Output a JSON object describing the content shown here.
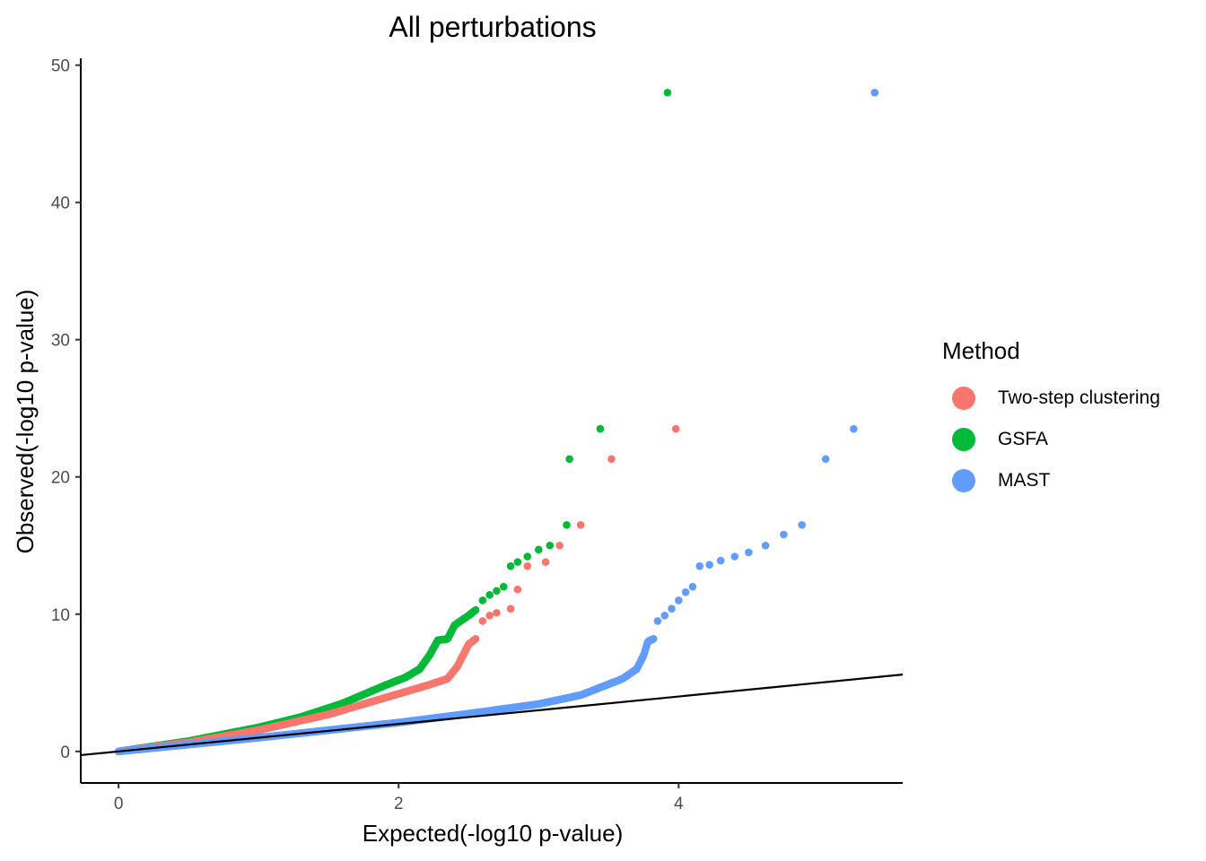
{
  "chart_data": {
    "type": "scatter",
    "title": "All perturbations",
    "xlabel": "Expected(-log10 p-value)",
    "ylabel": "Observed(-log10 p-value)",
    "xlim": [
      -0.27,
      5.6
    ],
    "ylim": [
      -2.3,
      50.5
    ],
    "xticks": [
      0,
      2,
      4
    ],
    "yticks": [
      0,
      10,
      20,
      30,
      40,
      50
    ],
    "reference_line": {
      "slope": 1,
      "intercept": 0,
      "color": "#000000"
    },
    "legend": {
      "title": "Method",
      "position": "right"
    },
    "series": [
      {
        "name": "Two-step clustering",
        "color": "#F8766D",
        "curve": [
          [
            0,
            0
          ],
          [
            0.5,
            0.65
          ],
          [
            1.0,
            1.55
          ],
          [
            1.5,
            2.7
          ],
          [
            1.8,
            3.6
          ],
          [
            2.0,
            4.2
          ],
          [
            2.2,
            4.8
          ],
          [
            2.35,
            5.3
          ],
          [
            2.42,
            6.2
          ],
          [
            2.5,
            7.8
          ],
          [
            2.55,
            8.2
          ]
        ],
        "points": [
          [
            2.6,
            9.5
          ],
          [
            2.65,
            9.9
          ],
          [
            2.7,
            10.1
          ],
          [
            2.8,
            10.4
          ],
          [
            2.85,
            11.8
          ],
          [
            2.92,
            13.5
          ],
          [
            3.05,
            13.8
          ],
          [
            3.15,
            15.0
          ],
          [
            3.3,
            16.5
          ],
          [
            3.52,
            21.3
          ],
          [
            3.98,
            23.5
          ],
          [
            5.4,
            48.0
          ]
        ]
      },
      {
        "name": "GSFA",
        "color": "#00BA38",
        "curve": [
          [
            0,
            0
          ],
          [
            0.5,
            0.75
          ],
          [
            1.0,
            1.75
          ],
          [
            1.3,
            2.5
          ],
          [
            1.6,
            3.5
          ],
          [
            1.9,
            4.8
          ],
          [
            2.05,
            5.4
          ],
          [
            2.15,
            6.0
          ],
          [
            2.22,
            7.0
          ],
          [
            2.28,
            8.1
          ],
          [
            2.35,
            8.2
          ],
          [
            2.4,
            9.2
          ],
          [
            2.5,
            9.9
          ],
          [
            2.55,
            10.3
          ]
        ],
        "points": [
          [
            2.6,
            11.0
          ],
          [
            2.65,
            11.4
          ],
          [
            2.7,
            11.7
          ],
          [
            2.75,
            12.0
          ],
          [
            2.8,
            13.5
          ],
          [
            2.85,
            13.8
          ],
          [
            2.92,
            14.2
          ],
          [
            3.0,
            14.7
          ],
          [
            3.08,
            15.0
          ],
          [
            3.2,
            16.5
          ],
          [
            3.22,
            21.3
          ],
          [
            3.44,
            23.5
          ],
          [
            3.92,
            48.0
          ]
        ]
      },
      {
        "name": "MAST",
        "color": "#619CFF",
        "curve": [
          [
            0,
            0
          ],
          [
            0.5,
            0.5
          ],
          [
            1.0,
            1.0
          ],
          [
            1.5,
            1.55
          ],
          [
            2.0,
            2.1
          ],
          [
            2.5,
            2.75
          ],
          [
            3.0,
            3.45
          ],
          [
            3.3,
            4.1
          ],
          [
            3.6,
            5.3
          ],
          [
            3.7,
            6.0
          ],
          [
            3.75,
            7.0
          ],
          [
            3.78,
            8.0
          ],
          [
            3.82,
            8.2
          ]
        ],
        "points": [
          [
            3.85,
            9.5
          ],
          [
            3.9,
            9.9
          ],
          [
            3.95,
            10.4
          ],
          [
            4.0,
            11.0
          ],
          [
            4.05,
            11.6
          ],
          [
            4.1,
            12.0
          ],
          [
            4.15,
            13.5
          ],
          [
            4.22,
            13.6
          ],
          [
            4.3,
            13.9
          ],
          [
            4.4,
            14.2
          ],
          [
            4.5,
            14.5
          ],
          [
            4.62,
            15.0
          ],
          [
            4.75,
            15.8
          ],
          [
            4.88,
            16.5
          ],
          [
            5.05,
            21.3
          ],
          [
            5.25,
            23.5
          ],
          [
            5.4,
            48.0
          ]
        ]
      }
    ]
  }
}
